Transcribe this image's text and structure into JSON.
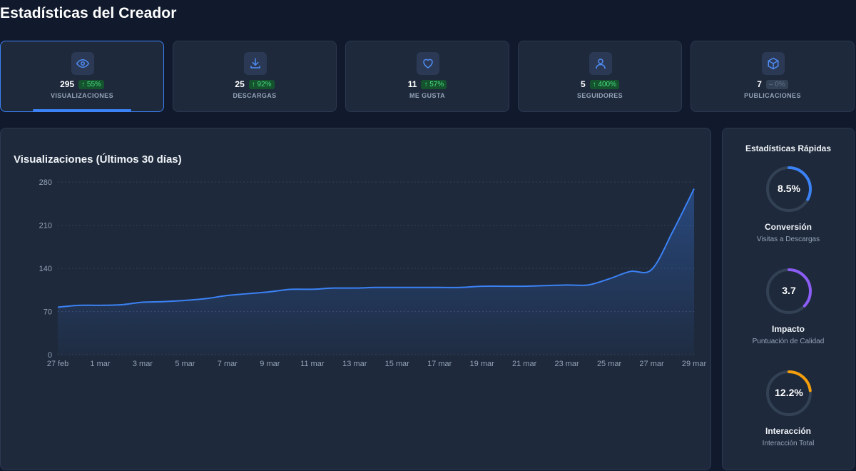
{
  "page": {
    "title": "Estadísticas del Creador"
  },
  "stats": [
    {
      "icon": "eye-icon",
      "value": "295",
      "change": "↑ 55%",
      "trend": "up",
      "label": "VISUALIZACIONES",
      "active": true
    },
    {
      "icon": "download-icon",
      "value": "25",
      "change": "↑ 92%",
      "trend": "up",
      "label": "DESCARGAS",
      "active": false
    },
    {
      "icon": "heart-icon",
      "value": "11",
      "change": "↑ 57%",
      "trend": "up",
      "label": "ME GUSTA",
      "active": false
    },
    {
      "icon": "user-icon",
      "value": "5",
      "change": "↑ 400%",
      "trend": "up",
      "label": "SEGUIDORES",
      "active": false
    },
    {
      "icon": "box-icon",
      "value": "7",
      "change": "– 0%",
      "trend": "neutral",
      "label": "PUBLICACIONES",
      "active": false
    }
  ],
  "chart_data": {
    "type": "area",
    "title": "Visualizaciones (Últimos 30 días)",
    "xlabel": "",
    "ylabel": "",
    "ylim": [
      0,
      280
    ],
    "yticks": [
      0,
      70,
      140,
      210,
      280
    ],
    "grid": true,
    "color": "#3b82f6",
    "x": [
      "27 feb",
      "28 feb",
      "1 mar",
      "2 mar",
      "3 mar",
      "4 mar",
      "5 mar",
      "6 mar",
      "7 mar",
      "8 mar",
      "9 mar",
      "10 mar",
      "11 mar",
      "12 mar",
      "13 mar",
      "14 mar",
      "15 mar",
      "16 mar",
      "17 mar",
      "18 mar",
      "19 mar",
      "20 mar",
      "21 mar",
      "22 mar",
      "23 mar",
      "24 mar",
      "25 mar",
      "26 mar",
      "27 mar",
      "28 mar",
      "29 mar"
    ],
    "xtick_labels": [
      "27 feb",
      "1 mar",
      "3 mar",
      "5 mar",
      "7 mar",
      "9 mar",
      "11 mar",
      "13 mar",
      "15 mar",
      "17 mar",
      "19 mar",
      "21 mar",
      "23 mar",
      "25 mar",
      "27 mar",
      "29 mar"
    ],
    "series": [
      {
        "values": [
          77,
          80,
          80,
          81,
          85,
          86,
          88,
          91,
          96,
          99,
          102,
          106,
          106,
          108,
          108,
          109,
          109,
          109,
          109,
          109,
          111,
          111,
          111,
          112,
          113,
          113,
          123,
          135,
          138,
          200,
          269
        ]
      }
    ]
  },
  "quick_stats": {
    "title": "Estadísticas Rápidas",
    "items": [
      {
        "value": "8.5%",
        "fraction": 0.33,
        "color": "#3b82f6",
        "name": "Conversión",
        "sub": "Visitas a Descargas",
        "icon": ""
      },
      {
        "value": "3.7",
        "fraction": 0.37,
        "color": "#8b5cf6",
        "name": "Impacto",
        "sub": "Puntuación de Calidad",
        "icon": ""
      },
      {
        "value": "12.2%",
        "fraction": 0.23,
        "color": "#f59e0b",
        "name": "Interacción",
        "sub": "Interacción Total",
        "icon": ""
      }
    ]
  }
}
